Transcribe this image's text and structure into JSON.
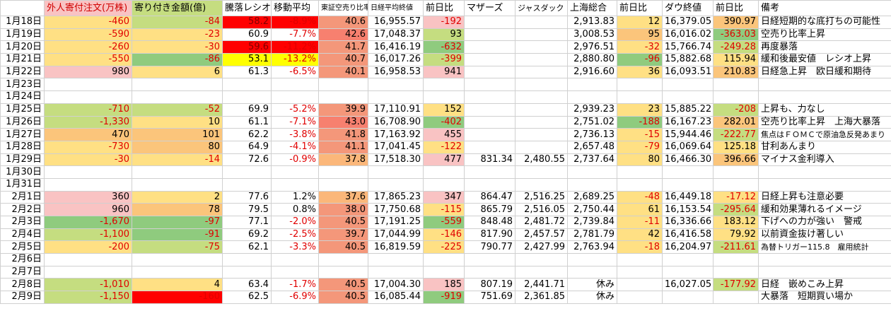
{
  "table": {
    "header": [
      null,
      "外人寄付注文(万株)",
      "寄り付き金額(億)",
      "騰落レシオ",
      "移動平均",
      "東証空売り比率",
      "日経平均終値",
      "前日比",
      "マザーズ",
      "ジャスダック",
      "上海総合",
      "前日比",
      "ダウ終値",
      "前日比",
      "備考"
    ],
    "rows": [
      [
        "1月18日",
        "-460",
        "-84",
        "58.2",
        "-8.9%",
        "40.6",
        "16,955.57",
        "-192",
        null,
        null,
        "2,913.83",
        "12",
        "16,379.05",
        "390.97",
        "日経短期的な底打ちの可能性"
      ],
      [
        "1月19日",
        "-590",
        "-23",
        "60.9",
        "-7.7%",
        "42.6",
        "17,048.37",
        "93",
        null,
        null,
        "3,008.53",
        "95",
        "16,016.02",
        "-363.03",
        "空売り比率上昇"
      ],
      [
        "1月20日",
        "-260",
        "-30",
        "59.6",
        "-11.2%",
        "41.7",
        "16,416.19",
        "-632",
        null,
        null,
        "2,976.51",
        "-32",
        "15,766.74",
        "-249.28",
        "再度暴落"
      ],
      [
        "1月21日",
        "-550",
        "-86",
        "53.1",
        "-13.2%",
        "40.7",
        "16,017.26",
        "-399",
        null,
        null,
        "2,880.80",
        "-96",
        "15,882.68",
        "115.94",
        "緩和後最安値　レシオ上昇"
      ],
      [
        "1月22日",
        "980",
        "6",
        "61.3",
        "-6.5%",
        "40.1",
        "16,958.53",
        "941",
        null,
        null,
        "2,916.60",
        "36",
        "16,093.51",
        "210.83",
        "日経急上昇　欧日緩和期待"
      ],
      [
        "1月23日",
        null,
        null,
        null,
        null,
        null,
        null,
        null,
        null,
        null,
        null,
        null,
        null,
        null,
        null
      ],
      [
        "1月24日",
        null,
        null,
        null,
        null,
        null,
        null,
        null,
        null,
        null,
        null,
        null,
        null,
        null,
        null
      ],
      [
        "1月25日",
        "-710",
        "-52",
        "69.9",
        "-5.2%",
        "39.9",
        "17,110.91",
        "152",
        null,
        null,
        "2,939.23",
        "23",
        "15,885.22",
        "-208",
        "上昇も、力なし"
      ],
      [
        "1月26日",
        "-1,330",
        "10",
        "61.1",
        "-7.1%",
        "43.0",
        "16,708.90",
        "-402",
        null,
        null,
        "2,751.02",
        "-188",
        "16,167.23",
        "282.01",
        "空売り比率上昇　上海大暴落"
      ],
      [
        "1月27日",
        "470",
        "101",
        "62.2",
        "-3.8%",
        "41.8",
        "17,163.92",
        "455",
        null,
        null,
        "2,736.13",
        "-15",
        "15,944.46",
        "-222.77",
        "焦点はＦＯＭＣで原油急反発あまり"
      ],
      [
        "1月28日",
        "-730",
        "80",
        "64.9",
        "-4.1%",
        "41.1",
        "17,041.45",
        "-122",
        null,
        null,
        "2,657.48",
        "-79",
        "16,069.64",
        "125.18",
        "甘利あんまり"
      ],
      [
        "1月29日",
        "-30",
        "-14",
        "72.6",
        "-0.9%",
        "37.8",
        "17,518.30",
        "477",
        "831.34",
        "2,480.55",
        "2,737.64",
        "80",
        "16,466.30",
        "396.66",
        "マイナス金利導入"
      ],
      [
        "1月30日",
        null,
        null,
        null,
        null,
        null,
        null,
        null,
        null,
        null,
        null,
        null,
        null,
        null,
        null
      ],
      [
        "1月31日",
        null,
        null,
        null,
        null,
        null,
        null,
        null,
        null,
        null,
        null,
        null,
        null,
        null,
        null
      ],
      [
        "2月1日",
        "360",
        "2",
        "77.6",
        "1.2%",
        "37.6",
        "17,865.23",
        "347",
        "864.47",
        "2,516.25",
        "2,689.25",
        "-48",
        "16,449.18",
        "-17.12",
        "日経上昇も注意必要"
      ],
      [
        "2月2日",
        "960",
        "78",
        "79.5",
        "0.8%",
        "38.0",
        "17,750.68",
        "-115",
        "865.79",
        "2,516.05",
        "2,750.44",
        "61",
        "16,153.54",
        "-295.64",
        "緩和効果薄れるイメージ"
      ],
      [
        "2月3日",
        "-1,670",
        "-97",
        "77.1",
        "-2.0%",
        "40.5",
        "17,191.25",
        "-559",
        "848.48",
        "2,481.72",
        "2,739.84",
        "-11",
        "16,336.66",
        "183.12",
        "下げへの力が強い　警戒"
      ],
      [
        "2月4日",
        "-1,100",
        "-91",
        "69.2",
        "-2.5%",
        "39.7",
        "17,044.99",
        "-146",
        "817.90",
        "2,457.57",
        "2,781.79",
        "42",
        "16,416.58",
        "79.92",
        "以前資金抜け著しい"
      ],
      [
        "2月5日",
        "-200",
        "-75",
        "62.1",
        "-3.3%",
        "40.5",
        "16,819.59",
        "-225",
        "790.77",
        "2,427.99",
        "2,763.94",
        "-18",
        "16,204.97",
        "-211.61",
        "為替トリガー115.8　雇用統計"
      ],
      [
        "2月6日",
        null,
        null,
        null,
        null,
        null,
        null,
        null,
        null,
        null,
        null,
        null,
        null,
        null,
        null
      ],
      [
        "2月7日",
        null,
        null,
        null,
        null,
        null,
        null,
        null,
        null,
        null,
        null,
        null,
        null,
        null,
        null
      ],
      [
        "2月8日",
        "-1,010",
        "4",
        "63.4",
        "-1.7%",
        "40.5",
        "17,004.30",
        "185",
        "807.19",
        "2,441.71",
        "休み",
        null,
        "16,027.05",
        "-177.92",
        "日経　嵌めこみ上昇"
      ],
      [
        "2月9日",
        "-1,150",
        "-160",
        "62.5",
        "-6.9%",
        "40.5",
        "16,085.44",
        "-919",
        "751.69",
        "2,361.85",
        "休み",
        null,
        null,
        null,
        "大暴落　短期買い場か"
      ]
    ]
  }
}
